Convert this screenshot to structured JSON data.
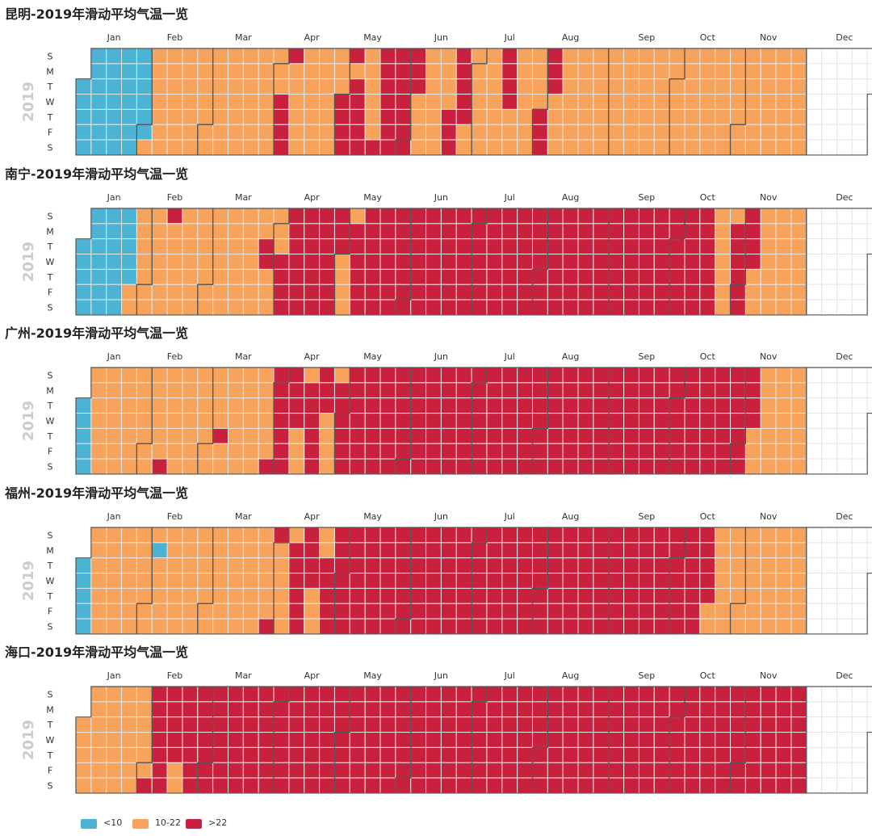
{
  "legend": {
    "items": [
      {
        "label": "<10",
        "color": "#4bb3d3"
      },
      {
        "label": "10-22",
        "color": "#f7a35c"
      },
      {
        "label": ">22",
        "color": "#c9213d"
      }
    ]
  },
  "chart_data": [
    {
      "type": "heatmap",
      "title": "昆明-2019年滑动平均气温一览",
      "year": "2019",
      "months": [
        "Jan",
        "Feb",
        "Mar",
        "Apr",
        "May",
        "Jun",
        "Jul",
        "Aug",
        "Sep",
        "Oct",
        "Nov",
        "Dec"
      ],
      "weekdays": [
        "S",
        "M",
        "T",
        "W",
        "T",
        "F",
        "S"
      ],
      "categories": [
        "<10",
        "10-22",
        ">22"
      ],
      "runs": [
        [
          1,
          32,
          0
        ],
        [
          33,
          90,
          1
        ],
        [
          91,
          92,
          1
        ],
        [
          93,
          97,
          2
        ],
        [
          98,
          120,
          1
        ],
        [
          121,
          125,
          2
        ],
        [
          126,
          126,
          1
        ],
        [
          127,
          131,
          2
        ],
        [
          132,
          137,
          1
        ],
        [
          138,
          155,
          2
        ],
        [
          156,
          170,
          1
        ],
        [
          171,
          178,
          2
        ],
        [
          179,
          194,
          1
        ],
        [
          195,
          198,
          2
        ],
        [
          199,
          212,
          1
        ],
        [
          213,
          218,
          2
        ],
        [
          219,
          334,
          1
        ]
      ]
    },
    {
      "type": "heatmap",
      "title": "南宁-2019年滑动平均气温一览",
      "year": "2019",
      "months": [
        "Jan",
        "Feb",
        "Mar",
        "Apr",
        "May",
        "Jun",
        "Jul",
        "Aug",
        "Sep",
        "Oct",
        "Nov",
        "Dec"
      ],
      "weekdays": [
        "S",
        "M",
        "T",
        "W",
        "T",
        "F",
        "S"
      ],
      "categories": [
        "<10",
        "10-22",
        ">22"
      ],
      "runs": [
        [
          1,
          24,
          0
        ],
        [
          25,
          40,
          1
        ],
        [
          41,
          41,
          2
        ],
        [
          42,
          84,
          1
        ],
        [
          85,
          86,
          2
        ],
        [
          87,
          92,
          1
        ],
        [
          93,
          120,
          2
        ],
        [
          121,
          125,
          1
        ],
        [
          126,
          292,
          2
        ],
        [
          293,
          300,
          1
        ],
        [
          301,
          310,
          2
        ],
        [
          311,
          334,
          1
        ]
      ]
    },
    {
      "type": "heatmap",
      "title": "广州-2019年滑动平均气温一览",
      "year": "2019",
      "months": [
        "Jan",
        "Feb",
        "Mar",
        "Apr",
        "May",
        "Jun",
        "Jul",
        "Aug",
        "Sep",
        "Oct",
        "Nov",
        "Dec"
      ],
      "weekdays": [
        "S",
        "M",
        "T",
        "W",
        "T",
        "F",
        "S"
      ],
      "categories": [
        "<10",
        "10-22",
        ">22"
      ],
      "runs": [
        [
          1,
          5,
          0
        ],
        [
          6,
          39,
          1
        ],
        [
          40,
          40,
          2
        ],
        [
          41,
          65,
          1
        ],
        [
          66,
          66,
          2
        ],
        [
          67,
          88,
          1
        ],
        [
          89,
          100,
          2
        ],
        [
          101,
          104,
          1
        ],
        [
          105,
          113,
          2
        ],
        [
          114,
          118,
          1
        ],
        [
          119,
          300,
          2
        ],
        [
          301,
          310,
          2
        ],
        [
          311,
          334,
          1
        ]
      ]
    },
    {
      "type": "heatmap",
      "title": "福州-2019年滑动平均气温一览",
      "year": "2019",
      "months": [
        "Jan",
        "Feb",
        "Mar",
        "Apr",
        "May",
        "Jun",
        "Jul",
        "Aug",
        "Sep",
        "Oct",
        "Nov",
        "Dec"
      ],
      "weekdays": [
        "S",
        "M",
        "T",
        "W",
        "T",
        "F",
        "S"
      ],
      "categories": [
        "<10",
        "10-22",
        ">22"
      ],
      "runs": [
        [
          1,
          5,
          0
        ],
        [
          6,
          34,
          1
        ],
        [
          35,
          35,
          0
        ],
        [
          36,
          88,
          1
        ],
        [
          89,
          90,
          2
        ],
        [
          91,
          97,
          1
        ],
        [
          98,
          107,
          2
        ],
        [
          108,
          112,
          1
        ],
        [
          113,
          290,
          2
        ],
        [
          291,
          334,
          1
        ]
      ]
    },
    {
      "type": "heatmap",
      "title": "海口-2019年滑动平均气温一览",
      "year": "2019",
      "months": [
        "Jan",
        "Feb",
        "Mar",
        "Apr",
        "May",
        "Jun",
        "Jul",
        "Aug",
        "Sep",
        "Oct",
        "Nov",
        "Dec"
      ],
      "weekdays": [
        "S",
        "M",
        "T",
        "W",
        "T",
        "F",
        "S"
      ],
      "categories": [
        "<10",
        "10-22",
        ">22"
      ],
      "runs": [
        [
          1,
          32,
          1
        ],
        [
          33,
          45,
          2
        ],
        [
          46,
          47,
          1
        ],
        [
          48,
          334,
          2
        ]
      ]
    }
  ]
}
